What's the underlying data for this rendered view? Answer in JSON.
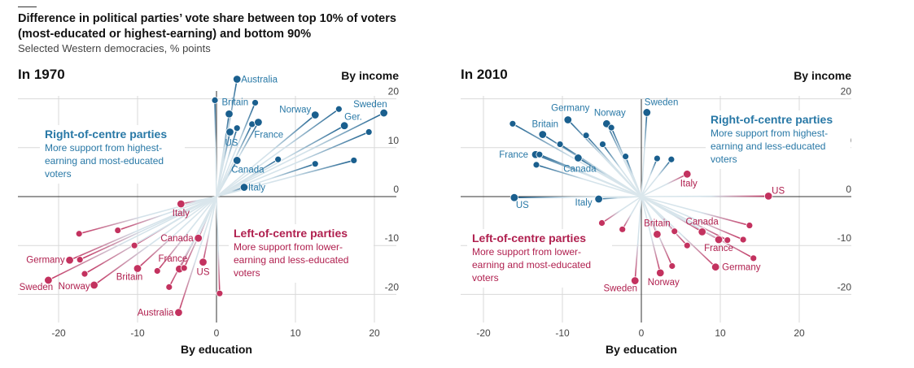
{
  "header": {
    "title_line1": "Difference in political parties’ vote share between top 10% of voters",
    "title_line2": "(most-educated or highest-earning) and bottom 90%",
    "subtitle": "Selected Western democracies, % points"
  },
  "colors": {
    "right_of_centre": "#1a5f8e",
    "left_of_centre": "#c3325f",
    "right_text": "#2878a6",
    "left_text": "#b0204f",
    "grid": "#d9d9d9"
  },
  "chart_data": [
    {
      "type": "scatter",
      "title": "In 1970",
      "xlabel": "By education",
      "ylabel": "By income",
      "xlim": [
        -25,
        22
      ],
      "ylim": [
        -26,
        24
      ],
      "xticks": [
        -20,
        -10,
        0,
        10,
        20
      ],
      "yticks": [
        20,
        10,
        0,
        -10,
        -20
      ],
      "grid": true,
      "annotations": {
        "right": {
          "heading": "Right-of-centre parties",
          "lines": [
            "More support from highest-",
            "earning and most-educated",
            "voters"
          ]
        },
        "left": {
          "heading": "Left-of-centre parties",
          "lines": [
            "More support from lower-",
            "earning and less-educated",
            "voters"
          ]
        }
      },
      "series": [
        {
          "name": "Right-of-centre parties",
          "points": [
            {
              "x": 2.6,
              "y": 24,
              "label": "Australia"
            },
            {
              "x": -0.2,
              "y": 19.7,
              "label": ""
            },
            {
              "x": 1.6,
              "y": 16.9,
              "label": "Britain"
            },
            {
              "x": 4.9,
              "y": 19.2,
              "label": ""
            },
            {
              "x": 1.7,
              "y": 13.2,
              "label": "US"
            },
            {
              "x": 2.6,
              "y": 14,
              "label": ""
            },
            {
              "x": 4.5,
              "y": 14.8,
              "label": ""
            },
            {
              "x": 5.3,
              "y": 15.2,
              "label": "France"
            },
            {
              "x": 12.5,
              "y": 16.7,
              "label": "Norway"
            },
            {
              "x": 15.5,
              "y": 17.9,
              "label": ""
            },
            {
              "x": 21.2,
              "y": 17.1,
              "label": "Sweden"
            },
            {
              "x": 16.2,
              "y": 14.5,
              "label": "Ger."
            },
            {
              "x": 19.3,
              "y": 13.2,
              "label": ""
            },
            {
              "x": 2.6,
              "y": 7.4,
              "label": "Canada"
            },
            {
              "x": 7.8,
              "y": 7.6,
              "label": ""
            },
            {
              "x": 12.5,
              "y": 6.7,
              "label": ""
            },
            {
              "x": 17.4,
              "y": 7.4,
              "label": ""
            },
            {
              "x": 3.5,
              "y": 1.9,
              "label": "Italy"
            }
          ]
        },
        {
          "name": "Left-of-centre parties",
          "points": [
            {
              "x": -4.5,
              "y": -1.5,
              "label": "Italy"
            },
            {
              "x": -17.4,
              "y": -7.6,
              "label": ""
            },
            {
              "x": -12.5,
              "y": -6.9,
              "label": ""
            },
            {
              "x": -10.4,
              "y": -10,
              "label": ""
            },
            {
              "x": -2.3,
              "y": -8.5,
              "label": "Canada"
            },
            {
              "x": -18.6,
              "y": -13,
              "label": "Germany"
            },
            {
              "x": -17.3,
              "y": -12.9,
              "label": ""
            },
            {
              "x": -16.7,
              "y": -15.8,
              "label": ""
            },
            {
              "x": -15.5,
              "y": -18.1,
              "label": "Norway"
            },
            {
              "x": -21.3,
              "y": -17.1,
              "label": "Sweden"
            },
            {
              "x": -10,
              "y": -14.7,
              "label": "Britain"
            },
            {
              "x": -7.5,
              "y": -15.2,
              "label": ""
            },
            {
              "x": -4.7,
              "y": -14.8,
              "label": "France"
            },
            {
              "x": -4.1,
              "y": -14.6,
              "label": ""
            },
            {
              "x": -6,
              "y": -18.5,
              "label": ""
            },
            {
              "x": -1.7,
              "y": -13.4,
              "label": "US"
            },
            {
              "x": 0.4,
              "y": -19.8,
              "label": ""
            },
            {
              "x": -4.8,
              "y": -23.7,
              "label": "Australia"
            }
          ]
        }
      ]
    },
    {
      "type": "scatter",
      "title": "In 2010",
      "xlabel": "By education",
      "ylabel": "By income",
      "xlim": [
        -23,
        26
      ],
      "ylim": [
        -26,
        24
      ],
      "xticks": [
        -20,
        -10,
        0,
        10,
        20
      ],
      "yticks": [
        20,
        10,
        0,
        -10,
        -20
      ],
      "grid": true,
      "annotations": {
        "right": {
          "heading": "Right-of-centre parties",
          "lines": [
            "More support from highest-",
            "earning and less-educated",
            "voters"
          ]
        },
        "left": {
          "heading": "Left-of-centre parties",
          "lines": [
            "More support from lower-",
            "earning and most-educated",
            "voters"
          ]
        }
      },
      "series": [
        {
          "name": "Right-of-centre parties",
          "points": [
            {
              "x": 0.7,
              "y": 17.2,
              "label": "Sweden"
            },
            {
              "x": -16.3,
              "y": 14.9,
              "label": ""
            },
            {
              "x": -12.5,
              "y": 12.7,
              "label": "Britain"
            },
            {
              "x": -9.3,
              "y": 15.7,
              "label": "Germany"
            },
            {
              "x": -4.4,
              "y": 14.9,
              "label": "Norway"
            },
            {
              "x": -3.8,
              "y": 14.1,
              "label": ""
            },
            {
              "x": -7,
              "y": 12.5,
              "label": ""
            },
            {
              "x": -10.3,
              "y": 10.7,
              "label": ""
            },
            {
              "x": -4.9,
              "y": 10.7,
              "label": ""
            },
            {
              "x": -2,
              "y": 8.2,
              "label": ""
            },
            {
              "x": -13.4,
              "y": 8.6,
              "label": "France"
            },
            {
              "x": -12.9,
              "y": 8.6,
              "label": ""
            },
            {
              "x": -8,
              "y": 7.9,
              "label": "Canada"
            },
            {
              "x": -13.3,
              "y": 6.5,
              "label": ""
            },
            {
              "x": 2,
              "y": 7.8,
              "label": ""
            },
            {
              "x": 3.8,
              "y": 7.6,
              "label": ""
            },
            {
              "x": -16.1,
              "y": -0.2,
              "label": "US"
            },
            {
              "x": -5.4,
              "y": -0.5,
              "label": "Italy"
            }
          ]
        },
        {
          "name": "Left-of-centre parties",
          "points": [
            {
              "x": 5.8,
              "y": 4.6,
              "label": "Italy"
            },
            {
              "x": 16.1,
              "y": 0.1,
              "label": "US"
            },
            {
              "x": -5,
              "y": -5.4,
              "label": ""
            },
            {
              "x": -2.4,
              "y": -6.7,
              "label": ""
            },
            {
              "x": 2,
              "y": -7.7,
              "label": "Britain"
            },
            {
              "x": 4.2,
              "y": -7.1,
              "label": ""
            },
            {
              "x": 7.7,
              "y": -7.2,
              "label": "Canada"
            },
            {
              "x": 13.7,
              "y": -5.9,
              "label": ""
            },
            {
              "x": 9.8,
              "y": -8.8,
              "label": "France"
            },
            {
              "x": 10.9,
              "y": -8.9,
              "label": ""
            },
            {
              "x": 12.9,
              "y": -8.8,
              "label": ""
            },
            {
              "x": 5.8,
              "y": -10,
              "label": ""
            },
            {
              "x": 14.2,
              "y": -12.6,
              "label": ""
            },
            {
              "x": 9.4,
              "y": -14.4,
              "label": "Germany"
            },
            {
              "x": 3.9,
              "y": -14.2,
              "label": ""
            },
            {
              "x": 2.4,
              "y": -15.6,
              "label": "Norway"
            },
            {
              "x": -0.8,
              "y": -17.2,
              "label": "Sweden"
            }
          ]
        }
      ]
    }
  ]
}
